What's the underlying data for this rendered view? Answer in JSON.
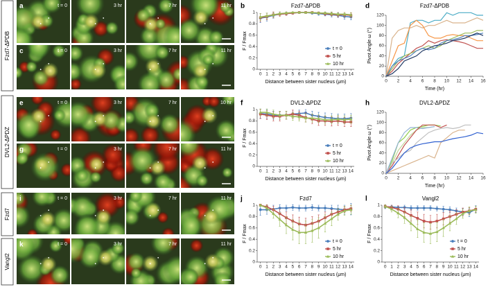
{
  "row_labels": [
    "Fzd7-ΔPDB",
    "DVL2-ΔPDZ",
    "Fzd7",
    "Vangl2"
  ],
  "panels": [
    {
      "letter": "a",
      "times": [
        "t = 0",
        "3 hr",
        "7 hr",
        "11 hr"
      ]
    },
    {
      "letter": "c",
      "times": [
        "t = 0",
        "3 hr",
        "7 hr",
        "11 hr"
      ]
    },
    {
      "letter": "e",
      "times": [
        "t = 0",
        "3 hr",
        "7 hr",
        "10 hr"
      ]
    },
    {
      "letter": "g",
      "times": [
        "t = 0",
        "3 hr",
        "7 hr",
        "11 hr"
      ]
    },
    {
      "letter": "i",
      "times": [
        "t = 0",
        "3 hr",
        "7 hr",
        "11 hr"
      ]
    },
    {
      "letter": "k",
      "times": [
        "t = 0",
        "3 hr",
        "7 hr",
        "11 hr"
      ]
    }
  ],
  "chart_data": [
    {
      "type": "line",
      "panel": "b",
      "title": "Fzd7-ΔPDB",
      "x_label": "Distance between sister nucleus (μm)",
      "y_label": "F / Fmax",
      "x": [
        0,
        1,
        2,
        3,
        4,
        5,
        6,
        7,
        8,
        9,
        10,
        11,
        12,
        13,
        14
      ],
      "xlim": [
        -0.5,
        14.5
      ],
      "xticks": [
        0,
        1,
        2,
        3,
        4,
        5,
        6,
        7,
        8,
        9,
        10,
        11,
        12,
        13,
        14
      ],
      "ylim": [
        0,
        1
      ],
      "yticks": [
        0,
        0.2,
        0.4,
        0.6,
        0.8,
        1
      ],
      "legend": "lower right",
      "series": [
        {
          "name": "t = 0",
          "color": "#4a7ebb",
          "marker": "circle",
          "values": [
            0.9,
            0.92,
            0.95,
            0.97,
            0.98,
            0.99,
            1,
            1,
            0.99,
            0.98,
            0.97,
            0.96,
            0.95,
            0.93,
            0.92
          ],
          "errors": [
            0.08,
            0.07,
            0.05,
            0.04,
            0.03,
            0.02,
            0.01,
            0.01,
            0.02,
            0.03,
            0.03,
            0.04,
            0.04,
            0.05,
            0.05
          ]
        },
        {
          "name": "5 hr",
          "color": "#c0504d",
          "marker": "square",
          "values": [
            0.91,
            0.93,
            0.96,
            0.97,
            0.98,
            0.99,
            1,
            1,
            1,
            0.99,
            0.98,
            0.97,
            0.96,
            0.96,
            0.95
          ],
          "errors": [
            0.07,
            0.06,
            0.05,
            0.04,
            0.03,
            0.02,
            0.01,
            0.01,
            0.01,
            0.02,
            0.03,
            0.03,
            0.04,
            0.04,
            0.04
          ]
        },
        {
          "name": "10 hr",
          "color": "#9bbb59",
          "marker": "triangle",
          "values": [
            0.92,
            0.94,
            0.96,
            0.98,
            0.99,
            1,
            1,
            1,
            1,
            0.99,
            0.99,
            0.98,
            0.97,
            0.97,
            0.96
          ],
          "errors": [
            0.06,
            0.05,
            0.04,
            0.03,
            0.02,
            0.01,
            0.01,
            0.01,
            0.01,
            0.02,
            0.02,
            0.03,
            0.03,
            0.03,
            0.04
          ]
        }
      ]
    },
    {
      "type": "line",
      "panel": "d",
      "title": "Fzd7-ΔPDB",
      "x_label": "Time (hr)",
      "y_label": "Pivot Angle ω (°)",
      "x": [
        0,
        1,
        2,
        3,
        4,
        5,
        6,
        7,
        8,
        9,
        10,
        11,
        12,
        13,
        14,
        15,
        16
      ],
      "xlim": [
        0,
        16
      ],
      "xticks": [
        0,
        2,
        4,
        6,
        8,
        10,
        12,
        14,
        16
      ],
      "ylim": [
        0,
        120
      ],
      "yticks": [
        0,
        20,
        40,
        60,
        80,
        100,
        120
      ],
      "series": [
        {
          "color": "#4bacc6",
          "values": [
            0,
            20,
            35,
            40,
            105,
            110,
            110,
            105,
            110,
            110,
            125,
            120,
            125,
            125,
            125,
            120,
            120
          ]
        },
        {
          "color": "#d9b38c",
          "values": [
            0,
            75,
            90,
            95,
            95,
            100,
            95,
            100,
            100,
            105,
            110,
            105,
            105,
            105,
            110,
            115,
            110
          ]
        },
        {
          "color": "#f79646",
          "values": [
            0,
            30,
            60,
            65,
            100,
            110,
            100,
            80,
            75,
            75,
            80,
            82,
            80,
            80,
            75,
            70,
            70
          ]
        },
        {
          "color": "#c0504d",
          "values": [
            0,
            10,
            25,
            35,
            45,
            55,
            60,
            70,
            65,
            70,
            72,
            70,
            68,
            65,
            60,
            55,
            55
          ]
        },
        {
          "color": "#9bbb59",
          "values": [
            0,
            15,
            30,
            40,
            45,
            50,
            55,
            60,
            55,
            60,
            70,
            75,
            80,
            85,
            85,
            90,
            90
          ]
        },
        {
          "color": "#4f81bd",
          "values": [
            0,
            20,
            30,
            35,
            40,
            50,
            55,
            52,
            55,
            65,
            70,
            72,
            75,
            80,
            80,
            82,
            85
          ]
        },
        {
          "color": "#1f3864",
          "values": [
            0,
            5,
            15,
            30,
            35,
            40,
            50,
            55,
            60,
            62,
            65,
            70,
            72,
            75,
            80,
            85,
            80
          ]
        }
      ]
    },
    {
      "type": "line",
      "panel": "f",
      "title": "DVL2-ΔPDZ",
      "x_label": "Distance between sister nucleus (μm)",
      "y_label": "F / Fmax",
      "x": [
        0,
        1,
        2,
        3,
        4,
        5,
        6,
        7,
        8,
        9,
        10,
        11,
        12,
        13,
        14
      ],
      "xlim": [
        -0.5,
        14.5
      ],
      "xticks": [
        0,
        1,
        2,
        3,
        4,
        5,
        6,
        7,
        8,
        9,
        10,
        11,
        12,
        13,
        14
      ],
      "ylim": [
        0,
        1
      ],
      "yticks": [
        0,
        0.2,
        0.4,
        0.6,
        0.8,
        1
      ],
      "legend": "lower right",
      "series": [
        {
          "name": "t = 0",
          "color": "#4a7ebb",
          "marker": "circle",
          "values": [
            0.93,
            0.92,
            0.9,
            0.9,
            0.9,
            0.92,
            0.93,
            0.94,
            0.9,
            0.88,
            0.86,
            0.85,
            0.84,
            0.84,
            0.85
          ],
          "errors": [
            0.08,
            0.08,
            0.07,
            0.07,
            0.07,
            0.07,
            0.06,
            0.06,
            0.07,
            0.07,
            0.08,
            0.08,
            0.08,
            0.08,
            0.08
          ]
        },
        {
          "name": "5 hr",
          "color": "#c0504d",
          "marker": "square",
          "values": [
            0.92,
            0.9,
            0.88,
            0.88,
            0.9,
            0.92,
            0.9,
            0.86,
            0.83,
            0.8,
            0.8,
            0.79,
            0.8,
            0.78,
            0.78
          ],
          "errors": [
            0.08,
            0.08,
            0.08,
            0.08,
            0.07,
            0.07,
            0.07,
            0.08,
            0.08,
            0.08,
            0.08,
            0.08,
            0.08,
            0.08,
            0.08
          ]
        },
        {
          "name": "10 hr",
          "color": "#9bbb59",
          "marker": "triangle",
          "values": [
            0.95,
            0.95,
            0.92,
            0.9,
            0.9,
            0.88,
            0.87,
            0.85,
            0.85,
            0.84,
            0.82,
            0.82,
            0.83,
            0.82,
            0.83
          ],
          "errors": [
            0.06,
            0.06,
            0.07,
            0.07,
            0.07,
            0.07,
            0.07,
            0.07,
            0.07,
            0.07,
            0.07,
            0.07,
            0.07,
            0.07,
            0.07
          ]
        }
      ]
    },
    {
      "type": "line",
      "panel": "h",
      "title": "DVL2-ΔPDZ",
      "x_label": "Time (hr)",
      "y_label": "Pivot Angle ω (°)",
      "x": [
        0,
        1,
        2,
        3,
        4,
        5,
        6,
        7,
        8,
        9,
        10,
        11,
        12,
        13,
        14,
        15,
        16
      ],
      "xlim": [
        0,
        16
      ],
      "xticks": [
        0,
        2,
        4,
        6,
        8,
        10,
        12,
        14,
        16
      ],
      "ylim": [
        0,
        120
      ],
      "yticks": [
        0,
        20,
        40,
        60,
        80,
        100,
        120
      ],
      "series": [
        {
          "color": "#92d050",
          "values": [
            0,
            25,
            60,
            70,
            85,
            90,
            92,
            95,
            95,
            93,
            null,
            null,
            null,
            null,
            null,
            null,
            null
          ]
        },
        {
          "color": "#c3d69b",
          "values": [
            0,
            20,
            45,
            60,
            75,
            85,
            90,
            90,
            92,
            null,
            null,
            null,
            null,
            null,
            null,
            null,
            null
          ]
        },
        {
          "color": "#95b3d7",
          "values": [
            0,
            30,
            60,
            80,
            90,
            90,
            88,
            90,
            92,
            null,
            null,
            null,
            null,
            null,
            null,
            null,
            null
          ]
        },
        {
          "color": "#c0504d",
          "values": [
            0,
            15,
            35,
            55,
            70,
            85,
            95,
            95,
            95,
            90,
            95,
            null,
            null,
            null,
            null,
            null,
            null
          ]
        },
        {
          "color": "#bfbfbf",
          "values": [
            0,
            20,
            30,
            40,
            45,
            60,
            70,
            80,
            85,
            88,
            90,
            88,
            90,
            95,
            95,
            null,
            null
          ]
        },
        {
          "color": "#d9b38c",
          "values": [
            0,
            5,
            10,
            15,
            20,
            25,
            30,
            35,
            30,
            60,
            70,
            80,
            85,
            85,
            null,
            null,
            null
          ]
        },
        {
          "color": "#2e5fd0",
          "values": [
            0,
            10,
            25,
            40,
            50,
            55,
            58,
            60,
            62,
            62,
            65,
            68,
            70,
            72,
            75,
            80,
            78
          ]
        }
      ]
    },
    {
      "type": "line",
      "panel": "j",
      "title": "Fzd7",
      "x_label": "Distance between sister nucleus (μm)",
      "y_label": "F / Fmax",
      "x": [
        0,
        1,
        2,
        3,
        4,
        5,
        6,
        7,
        8,
        9,
        10,
        11,
        12,
        13,
        14
      ],
      "xlim": [
        -0.5,
        14.5
      ],
      "xticks": [
        0,
        1,
        2,
        3,
        4,
        5,
        6,
        7,
        8,
        9,
        10,
        11,
        12,
        13,
        14
      ],
      "ylim": [
        0,
        1
      ],
      "yticks": [
        0,
        0.2,
        0.4,
        0.6,
        0.8,
        1
      ],
      "legend": "lower right",
      "series": [
        {
          "name": "t = 0",
          "color": "#4a7ebb",
          "marker": "circle",
          "values": [
            0.92,
            0.92,
            0.93,
            0.95,
            0.95,
            0.96,
            0.95,
            0.95,
            0.96,
            0.95,
            0.95,
            0.94,
            0.93,
            0.92,
            0.93
          ],
          "errors": [
            0.1,
            0.08,
            0.07,
            0.06,
            0.05,
            0.05,
            0.05,
            0.05,
            0.05,
            0.05,
            0.05,
            0.06,
            0.07,
            0.08,
            0.1
          ]
        },
        {
          "name": "5 hr",
          "color": "#c0504d",
          "marker": "square",
          "values": [
            1,
            0.97,
            0.92,
            0.85,
            0.78,
            0.72,
            0.67,
            0.65,
            0.68,
            0.72,
            0.78,
            0.84,
            0.88,
            0.92,
            0.94
          ],
          "errors": [
            0.02,
            0.04,
            0.06,
            0.08,
            0.1,
            0.11,
            0.12,
            0.12,
            0.12,
            0.11,
            0.1,
            0.08,
            0.06,
            0.05,
            0.05
          ]
        },
        {
          "name": "10 hr",
          "color": "#9bbb59",
          "marker": "triangle",
          "values": [
            1,
            0.95,
            0.85,
            0.75,
            0.65,
            0.57,
            0.52,
            0.52,
            0.55,
            0.6,
            0.68,
            0.76,
            0.84,
            0.9,
            0.92
          ],
          "errors": [
            0.02,
            0.05,
            0.08,
            0.12,
            0.15,
            0.18,
            0.2,
            0.2,
            0.2,
            0.18,
            0.15,
            0.12,
            0.1,
            0.08,
            0.08
          ]
        }
      ]
    },
    {
      "type": "line",
      "panel": "l",
      "title": "Vangl2",
      "x_label": "Distance between sister nucleus (μm)",
      "y_label": "F / Fmax",
      "x": [
        0,
        1,
        2,
        3,
        4,
        5,
        6,
        7,
        8,
        9,
        10,
        11,
        12,
        13,
        14
      ],
      "xlim": [
        -0.5,
        14.5
      ],
      "xticks": [
        0,
        1,
        2,
        3,
        4,
        5,
        6,
        7,
        8,
        9,
        10,
        11,
        12,
        13,
        14
      ],
      "ylim": [
        0,
        1
      ],
      "yticks": [
        0,
        0.2,
        0.4,
        0.6,
        0.8,
        1
      ],
      "legend": "lower right",
      "series": [
        {
          "name": "t = 0",
          "color": "#4a7ebb",
          "marker": "circle",
          "values": [
            0.97,
            0.97,
            0.96,
            0.96,
            0.95,
            0.95,
            0.95,
            0.95,
            0.94,
            0.93,
            0.92,
            0.9,
            0.88,
            0.87,
            0.93
          ],
          "errors": [
            0.03,
            0.03,
            0.03,
            0.04,
            0.04,
            0.04,
            0.04,
            0.04,
            0.04,
            0.05,
            0.05,
            0.05,
            0.06,
            0.07,
            0.06
          ]
        },
        {
          "name": "5 hr",
          "color": "#c0504d",
          "marker": "square",
          "values": [
            0.98,
            0.96,
            0.93,
            0.88,
            0.82,
            0.77,
            0.72,
            0.7,
            0.72,
            0.76,
            0.8,
            0.84,
            0.88,
            0.9,
            0.93
          ],
          "errors": [
            0.03,
            0.04,
            0.06,
            0.08,
            0.1,
            0.11,
            0.12,
            0.12,
            0.12,
            0.11,
            0.1,
            0.08,
            0.07,
            0.06,
            0.05
          ]
        },
        {
          "name": "10 hr",
          "color": "#9bbb59",
          "marker": "triangle",
          "values": [
            0.98,
            0.93,
            0.86,
            0.78,
            0.68,
            0.58,
            0.52,
            0.5,
            0.53,
            0.6,
            0.68,
            0.76,
            0.85,
            0.9,
            0.92
          ],
          "errors": [
            0.03,
            0.05,
            0.08,
            0.1,
            0.13,
            0.15,
            0.17,
            0.18,
            0.17,
            0.15,
            0.13,
            0.1,
            0.08,
            0.07,
            0.06
          ]
        }
      ]
    }
  ]
}
